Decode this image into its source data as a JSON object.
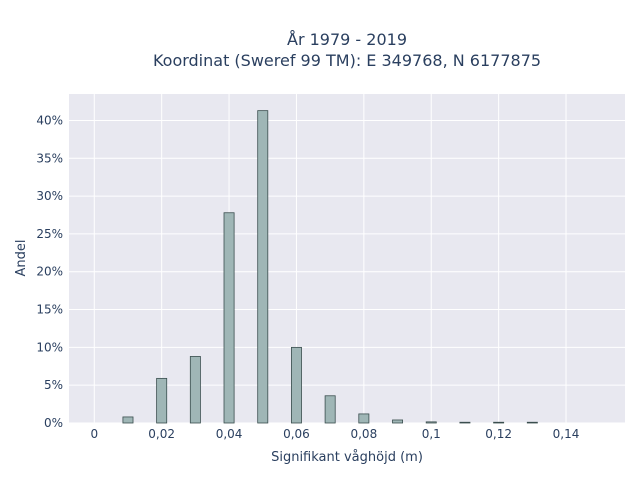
{
  "chart_data": {
    "type": "bar",
    "title_line1": "År 1979 - 2019",
    "title_line2": "Koordinat (Sweref 99 TM): E 349768, N 6177875",
    "xlabel": "Signifikant våghöjd (m)",
    "ylabel": "Andel",
    "xlim": [
      -0.0075,
      0.1575
    ],
    "ylim": [
      0,
      43.5
    ],
    "x_ticks": [
      0,
      0.02,
      0.04,
      0.06,
      0.08,
      0.1,
      0.12,
      0.14
    ],
    "x_tick_labels": [
      "0",
      "0,02",
      "0,04",
      "0,06",
      "0,08",
      "0,1",
      "0,12",
      "0,14"
    ],
    "y_ticks": [
      0,
      5,
      10,
      15,
      20,
      25,
      30,
      35,
      40
    ],
    "y_tick_labels": [
      "0%",
      "5%",
      "10%",
      "15%",
      "20%",
      "25%",
      "30%",
      "35%",
      "40%"
    ],
    "bar_width": 0.003,
    "x": [
      0.01,
      0.02,
      0.03,
      0.04,
      0.05,
      0.06,
      0.07,
      0.08,
      0.09,
      0.1,
      0.11,
      0.12,
      0.13
    ],
    "values": [
      0.8,
      5.9,
      8.8,
      27.8,
      41.3,
      10.0,
      3.6,
      1.2,
      0.4,
      0.15,
      0.1,
      0.1,
      0.1
    ],
    "bar_color": "#9fb6b6",
    "bar_edge_color": "#3a4e4e",
    "plot_bg": "#e8e8f0",
    "grid": true,
    "grid_color": "#ffffff"
  }
}
